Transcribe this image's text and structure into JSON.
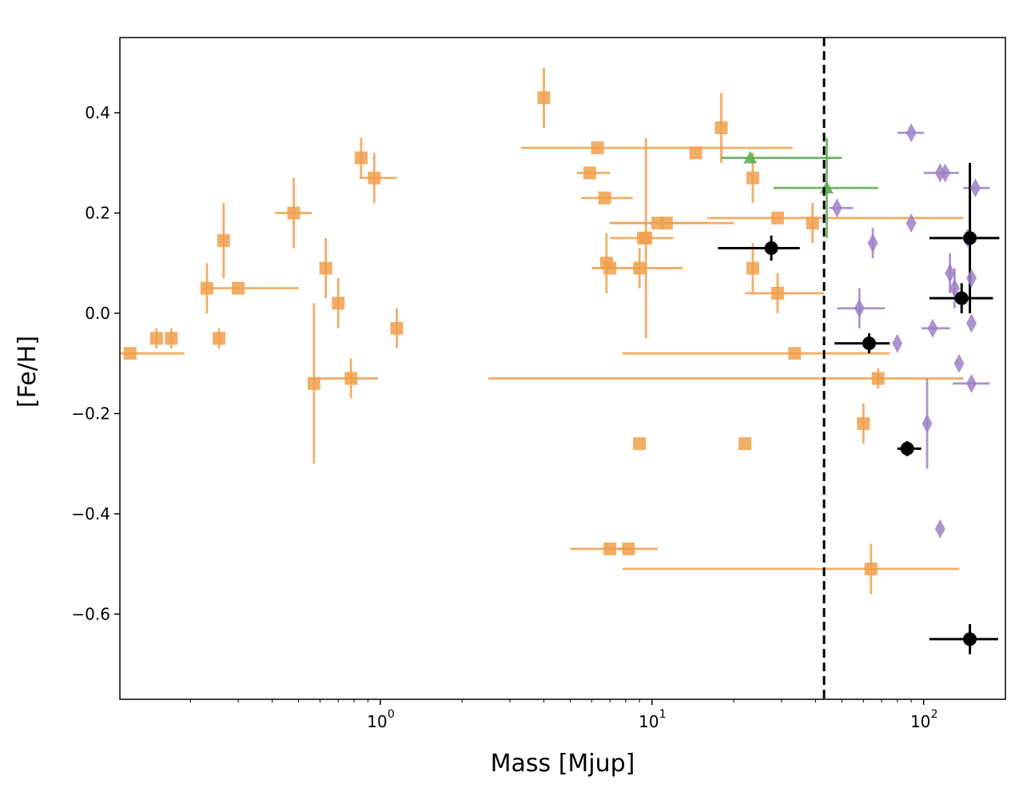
{
  "chart_data": {
    "type": "scatter",
    "title": "",
    "xlabel": "Mass [Mjup]",
    "ylabel": "[Fe/H]",
    "xscale": "log",
    "xlim": [
      0.11,
      200
    ],
    "ylim": [
      -0.77,
      0.55
    ],
    "x_ticks": [
      {
        "base": "10",
        "exp": "0",
        "value": 1
      },
      {
        "base": "10",
        "exp": "1",
        "value": 10
      },
      {
        "base": "10",
        "exp": "2",
        "value": 100
      }
    ],
    "y_ticks": [
      {
        "label": "0.4",
        "value": 0.4
      },
      {
        "label": "0.2",
        "value": 0.2
      },
      {
        "label": "0.0",
        "value": 0.0
      },
      {
        "label": "−0.2",
        "value": -0.2
      },
      {
        "label": "−0.4",
        "value": -0.4
      },
      {
        "label": "−0.6",
        "value": -0.6
      }
    ],
    "vline": {
      "x": 43,
      "style": "dashed",
      "color": "#000000"
    },
    "grid": false,
    "series": [
      {
        "name": "orange squares",
        "marker": "square",
        "color": "#f0a04b",
        "points": [
          {
            "x": 0.15,
            "y": -0.05,
            "yerr": 0.02
          },
          {
            "x": 0.17,
            "y": -0.05,
            "yerr": 0.02
          },
          {
            "x": 0.12,
            "y": -0.08,
            "xlo": 0.08,
            "xhi": 0.19
          },
          {
            "x": 0.23,
            "y": 0.05,
            "yerr": 0.05
          },
          {
            "x": 0.255,
            "y": -0.05,
            "yerr": 0.02
          },
          {
            "x": 0.265,
            "y": 0.145,
            "yerr": 0.075
          },
          {
            "x": 0.3,
            "y": 0.05,
            "xlo": 0.22,
            "xhi": 0.5
          },
          {
            "x": 0.48,
            "y": 0.2,
            "yerr": 0.07,
            "xlo": 0.41,
            "xhi": 0.56
          },
          {
            "x": 0.57,
            "y": -0.14,
            "yerr": 0.16
          },
          {
            "x": 0.63,
            "y": 0.09,
            "yerr": 0.06
          },
          {
            "x": 0.7,
            "y": 0.02,
            "yerr": 0.05
          },
          {
            "x": 0.78,
            "y": -0.13,
            "yerr": 0.04,
            "xlo": 0.56,
            "xhi": 0.98
          },
          {
            "x": 0.85,
            "y": 0.31,
            "yerr": 0.04
          },
          {
            "x": 0.95,
            "y": 0.27,
            "yerr": 0.05,
            "xlo": 0.84,
            "xhi": 1.15
          },
          {
            "x": 1.15,
            "y": -0.03,
            "yerr": 0.04
          },
          {
            "x": 4.0,
            "y": 0.43,
            "yerr": 0.06
          },
          {
            "x": 6.3,
            "y": 0.33,
            "xlo": 3.3,
            "xhi": 33
          },
          {
            "x": 5.9,
            "y": 0.28,
            "xlo": 5.3,
            "xhi": 7.0
          },
          {
            "x": 6.7,
            "y": 0.23,
            "xlo": 5.5,
            "xhi": 8.5
          },
          {
            "x": 6.8,
            "y": 0.1,
            "yerr": 0.06
          },
          {
            "x": 9.3,
            "y": 0.15,
            "xlo": 7.0,
            "xhi": 12
          },
          {
            "x": 9.0,
            "y": 0.09,
            "yerr": 0.04
          },
          {
            "x": 9.5,
            "y": 0.15,
            "yerr": 0.2
          },
          {
            "x": 10.5,
            "y": 0.18,
            "xlo": 7.0,
            "xhi": 20
          },
          {
            "x": 11.3,
            "y": 0.18,
            "xlo": 7.0,
            "xhi": 16
          },
          {
            "x": 14.5,
            "y": 0.32
          },
          {
            "x": 18,
            "y": 0.37,
            "yerr": 0.07
          },
          {
            "x": 23.5,
            "y": 0.27,
            "yerr": 0.05
          },
          {
            "x": 29,
            "y": 0.19,
            "xlo": 16,
            "xhi": 140
          },
          {
            "x": 39,
            "y": 0.18,
            "yerr": 0.04
          },
          {
            "x": 23.5,
            "y": 0.09,
            "yerr": 0.05
          },
          {
            "x": 29,
            "y": 0.04,
            "yerr": 0.04,
            "xlo": 22,
            "xhi": 43
          },
          {
            "x": 7.0,
            "y": 0.09,
            "xlo": 6.0,
            "xhi": 13
          },
          {
            "x": 9.0,
            "y": -0.26
          },
          {
            "x": 22,
            "y": -0.26
          },
          {
            "x": 33.5,
            "y": -0.08,
            "xlo": 7.8,
            "xhi": 75
          },
          {
            "x": 68,
            "y": -0.13,
            "yerr": 0.02,
            "xlo": 2.5,
            "xhi": 140
          },
          {
            "x": 60,
            "y": -0.22,
            "yerr": 0.04
          },
          {
            "x": 7.0,
            "y": -0.47,
            "xlo": 5.0,
            "xhi": 8.0
          },
          {
            "x": 8.2,
            "y": -0.47,
            "xlo": 7.5,
            "xhi": 10.5
          },
          {
            "x": 64,
            "y": -0.51,
            "yerr": 0.05,
            "xlo": 7.8,
            "xhi": 135
          }
        ]
      },
      {
        "name": "green triangles",
        "marker": "triangle",
        "color": "#5aab50",
        "points": [
          {
            "x": 23,
            "y": 0.31,
            "xlo": 18,
            "xhi": 50
          },
          {
            "x": 44,
            "y": 0.25,
            "yerr": 0.1,
            "xlo": 28,
            "xhi": 68
          }
        ]
      },
      {
        "name": "purple diamonds",
        "marker": "diamond",
        "color": "#9f80c7",
        "points": [
          {
            "x": 90,
            "y": 0.36,
            "xlo": 80,
            "xhi": 100
          },
          {
            "x": 115,
            "y": 0.28,
            "xlo": 100,
            "xhi": 135
          },
          {
            "x": 120,
            "y": 0.28
          },
          {
            "x": 155,
            "y": 0.25,
            "xlo": 140,
            "xhi": 175
          },
          {
            "x": 48,
            "y": 0.21,
            "xlo": 45,
            "xhi": 55
          },
          {
            "x": 90,
            "y": 0.18
          },
          {
            "x": 65,
            "y": 0.14,
            "yerr": 0.03
          },
          {
            "x": 145,
            "y": 0.15
          },
          {
            "x": 125,
            "y": 0.08,
            "yerr": 0.04
          },
          {
            "x": 130,
            "y": 0.05,
            "yerr": 0.04
          },
          {
            "x": 150,
            "y": 0.07
          },
          {
            "x": 58,
            "y": 0.01,
            "yerr": 0.04,
            "xlo": 48,
            "xhi": 72
          },
          {
            "x": 108,
            "y": -0.03,
            "xlo": 98,
            "xhi": 125
          },
          {
            "x": 150,
            "y": -0.02
          },
          {
            "x": 80,
            "y": -0.06
          },
          {
            "x": 135,
            "y": -0.1
          },
          {
            "x": 150,
            "y": -0.14,
            "xlo": 128,
            "xhi": 175
          },
          {
            "x": 103,
            "y": -0.22,
            "yerr": 0.09
          },
          {
            "x": 115,
            "y": -0.43
          }
        ]
      },
      {
        "name": "black circles",
        "marker": "circle",
        "color": "#000000",
        "points": [
          {
            "x": 27.5,
            "y": 0.13,
            "yerr": 0.025,
            "xlo": 17.5,
            "xhi": 35
          },
          {
            "x": 148,
            "y": 0.15,
            "yerr": 0.15,
            "xlo": 105,
            "xhi": 190
          },
          {
            "x": 138,
            "y": 0.03,
            "yerr": 0.03,
            "xlo": 105,
            "xhi": 180
          },
          {
            "x": 63,
            "y": -0.06,
            "yerr": 0.02,
            "xlo": 47,
            "xhi": 75
          },
          {
            "x": 87,
            "y": -0.27,
            "yerr": 0.015,
            "xlo": 80,
            "xhi": 98
          },
          {
            "x": 148,
            "y": -0.65,
            "yerr": 0.03,
            "xlo": 105,
            "xhi": 188
          }
        ]
      }
    ]
  }
}
